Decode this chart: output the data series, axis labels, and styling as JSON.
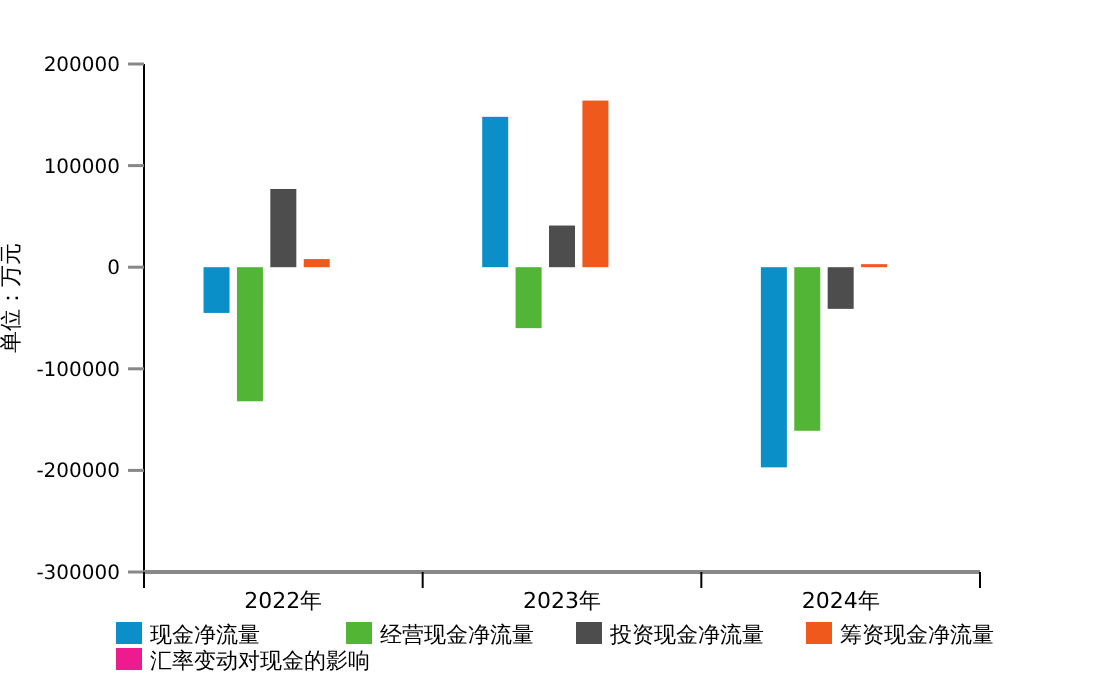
{
  "chart_data": {
    "type": "bar",
    "ylabel": "单位：万元",
    "categories": [
      "2022年",
      "2023年",
      "2024年"
    ],
    "ylim": [
      -300000,
      200000
    ],
    "yticks": [
      -300000,
      -200000,
      -100000,
      0,
      100000,
      200000
    ],
    "grid": false,
    "legend": "bottom",
    "series": [
      {
        "name": "现金净流量",
        "color": "#0a8fc8",
        "values": [
          -45000,
          148000,
          -197000
        ]
      },
      {
        "name": "经营现金净流量",
        "color": "#52b535",
        "values": [
          -132000,
          -60000,
          -161000
        ]
      },
      {
        "name": "投资现金净流量",
        "color": "#4d4d4d",
        "values": [
          77000,
          41000,
          -41000
        ]
      },
      {
        "name": "筹资现金净流量",
        "color": "#ef5a1c",
        "values": [
          8000,
          164000,
          3000
        ]
      },
      {
        "name": "汇率变动对现金的影响",
        "color": "#ee1a8f",
        "values": [
          0,
          0,
          0
        ]
      }
    ]
  }
}
